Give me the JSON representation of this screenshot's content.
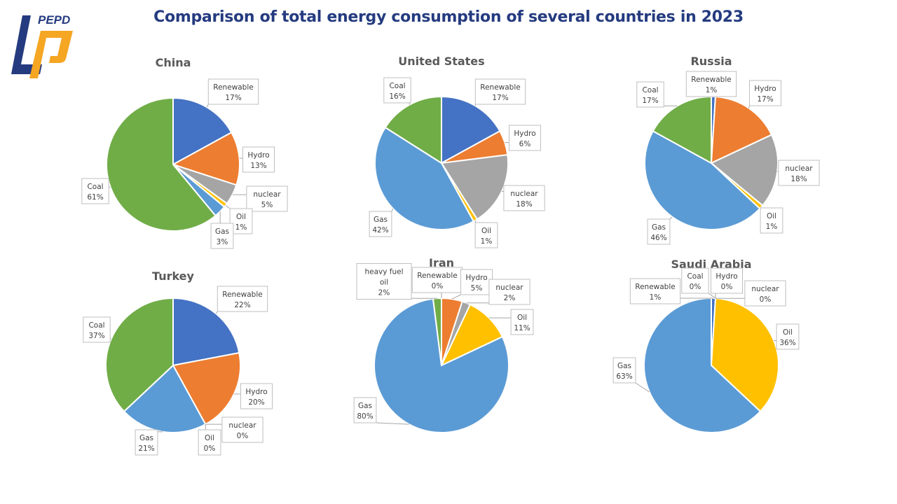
{
  "title": "Comparison of total energy consumption of several countries in 2023",
  "logo": {
    "text": "PEPD",
    "colors": {
      "blue": "#253b80",
      "orange": "#f5a623"
    }
  },
  "chart_data": [
    {
      "type": "pie",
      "title": "China",
      "labels": [
        "Renewable",
        "Hydro",
        "nuclear",
        "Oil",
        "Gas",
        "Coal"
      ],
      "values": [
        17,
        13,
        5,
        1,
        3,
        61
      ],
      "colors": [
        "#4472C4",
        "#ED7D31",
        "#A5A5A5",
        "#FFC000",
        "#5B9BD5",
        "#70AD47"
      ]
    },
    {
      "type": "pie",
      "title": "United States",
      "labels": [
        "Renewable",
        "Hydro",
        "nuclear",
        "Oil",
        "Gas",
        "Coal"
      ],
      "values": [
        17,
        6,
        18,
        1,
        42,
        16
      ],
      "colors": [
        "#4472C4",
        "#ED7D31",
        "#A5A5A5",
        "#FFC000",
        "#5B9BD5",
        "#70AD47"
      ]
    },
    {
      "type": "pie",
      "title": "Russia",
      "labels": [
        "Renewable",
        "Hydro",
        "nuclear",
        "Oil",
        "Gas",
        "Coal"
      ],
      "values": [
        1,
        17,
        18,
        1,
        46,
        17
      ],
      "colors": [
        "#4472C4",
        "#ED7D31",
        "#A5A5A5",
        "#FFC000",
        "#5B9BD5",
        "#70AD47"
      ]
    },
    {
      "type": "pie",
      "title": "Turkey",
      "labels": [
        "Renewable",
        "Hydro",
        "nuclear",
        "Oil",
        "Gas",
        "Coal"
      ],
      "values": [
        22,
        20,
        0,
        0,
        21,
        37
      ],
      "colors": [
        "#4472C4",
        "#ED7D31",
        "#A5A5A5",
        "#FFC000",
        "#5B9BD5",
        "#70AD47"
      ]
    },
    {
      "type": "pie",
      "title": "Iran",
      "labels": [
        "Renewable",
        "Hydro",
        "nuclear",
        "Oil",
        "Gas",
        "heavy fuel oil"
      ],
      "values": [
        0,
        5,
        2,
        11,
        80,
        2
      ],
      "colors": [
        "#4472C4",
        "#ED7D31",
        "#A5A5A5",
        "#FFC000",
        "#5B9BD5",
        "#70AD47"
      ]
    },
    {
      "type": "pie",
      "title": "Saudi Arabia",
      "labels": [
        "Renewable",
        "Coal",
        "Hydro",
        "nuclear",
        "Oil",
        "Gas"
      ],
      "values": [
        1,
        0,
        0,
        0,
        36,
        63
      ],
      "colors": [
        "#4472C4",
        "#70AD47",
        "#ED7D31",
        "#A5A5A5",
        "#FFC000",
        "#5B9BD5"
      ]
    }
  ]
}
